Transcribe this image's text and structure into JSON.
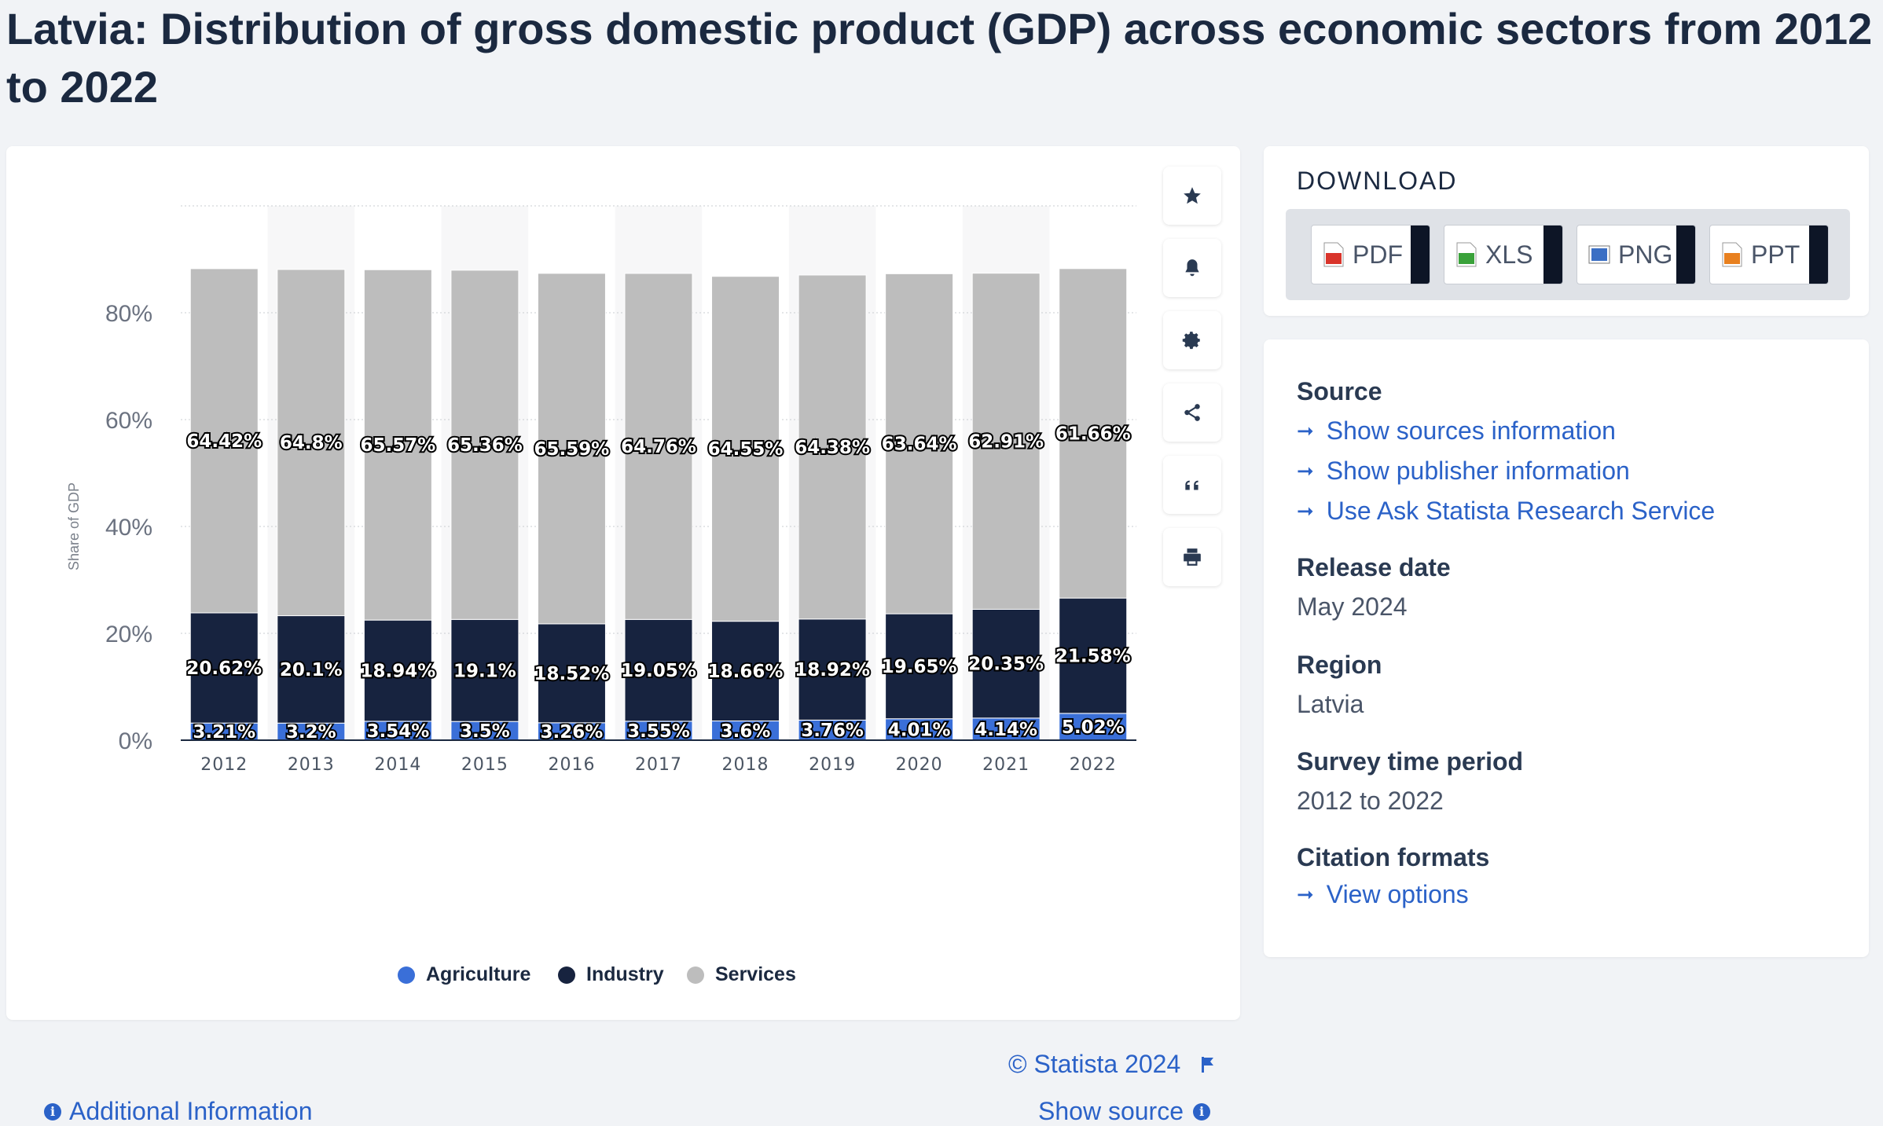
{
  "page": {
    "title": "Latvia: Distribution of gross domestic product (GDP) across economic sectors from 2012 to 2022"
  },
  "toolbar": {
    "icons": [
      "star-icon",
      "bell-icon",
      "gear-icon",
      "share-icon",
      "quote-icon",
      "print-icon"
    ]
  },
  "chart_data": {
    "type": "bar",
    "stacked": true,
    "title": "",
    "xlabel": "",
    "ylabel": "Share of GDP",
    "ylim": [
      0,
      100
    ],
    "yticks": [
      "0%",
      "20%",
      "40%",
      "60%",
      "80%"
    ],
    "grid": true,
    "legend_position": "bottom",
    "categories": [
      "2012",
      "2013",
      "2014",
      "2015",
      "2016",
      "2017",
      "2018",
      "2019",
      "2020",
      "2021",
      "2022"
    ],
    "series": [
      {
        "name": "Agriculture",
        "color": "#3a6fd8",
        "values": [
          3.21,
          3.2,
          3.54,
          3.5,
          3.26,
          3.55,
          3.6,
          3.76,
          4.01,
          4.14,
          5.02
        ],
        "labels": [
          "3.21%",
          "3.2%",
          "3.54%",
          "3.5%",
          "3.26%",
          "3.55%",
          "3.6%",
          "3.76%",
          "4.01%",
          "4.14%",
          "5.02%"
        ]
      },
      {
        "name": "Industry",
        "color": "#17233f",
        "values": [
          20.62,
          20.1,
          18.94,
          19.1,
          18.52,
          19.05,
          18.66,
          18.92,
          19.65,
          20.35,
          21.58
        ],
        "labels": [
          "20.62%",
          "20.1%",
          "18.94%",
          "19.1%",
          "18.52%",
          "19.05%",
          "18.66%",
          "18.92%",
          "19.65%",
          "20.35%",
          "21.58%"
        ]
      },
      {
        "name": "Services",
        "color": "#bdbdbd",
        "values": [
          64.42,
          64.8,
          65.57,
          65.36,
          65.59,
          64.76,
          64.55,
          64.38,
          63.64,
          62.91,
          61.66
        ],
        "labels": [
          "64.42%",
          "64.8%",
          "65.57%",
          "65.36%",
          "65.59%",
          "64.76%",
          "64.55%",
          "64.38%",
          "63.64%",
          "62.91%",
          "61.66%"
        ]
      }
    ]
  },
  "chart_footer": {
    "copyright": "© Statista 2024",
    "additional_info": "Additional Information",
    "show_source": "Show source"
  },
  "download": {
    "title": "DOWNLOAD",
    "buttons": [
      {
        "label": "PDF",
        "icon": "pdf-file-icon",
        "color": "#d9342b"
      },
      {
        "label": "XLS",
        "icon": "xls-file-icon",
        "color": "#3aa23a"
      },
      {
        "label": "PNG",
        "icon": "png-file-icon",
        "color": "#3b6fc4"
      },
      {
        "label": "PPT",
        "icon": "ppt-file-icon",
        "color": "#e8801f"
      }
    ]
  },
  "info": {
    "source_heading": "Source",
    "source_links": [
      "Show sources information",
      "Show publisher information",
      "Use Ask Statista Research Service"
    ],
    "release_heading": "Release date",
    "release_value": "May 2024",
    "region_heading": "Region",
    "region_value": "Latvia",
    "survey_heading": "Survey time period",
    "survey_value": "2012 to 2022",
    "citation_heading": "Citation formats",
    "citation_link": "View options"
  },
  "colors": {
    "link": "#2b62c8",
    "agriculture": "#3a6fd8",
    "industry": "#17233f",
    "services": "#bdbdbd"
  }
}
